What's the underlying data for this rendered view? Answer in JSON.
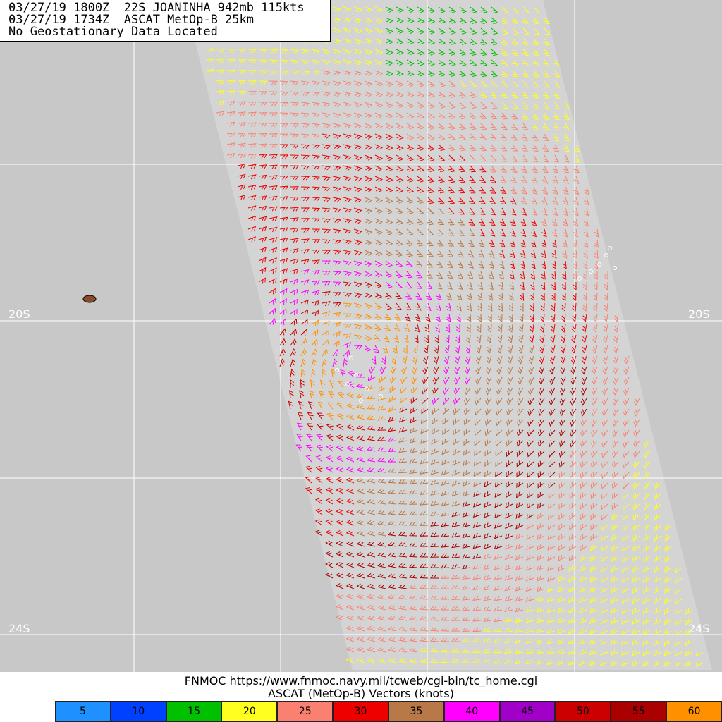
{
  "header": {
    "line1": "03/27/19 1800Z  22S JOANINHA 942mb 115kts",
    "line2": "03/27/19 1734Z  ASCAT MetOp-B 25km",
    "line3": "No Geostationary Data Located"
  },
  "grid": {
    "lat_labels": [
      {
        "text": "20S",
        "side": "left"
      },
      {
        "text": "20S",
        "side": "right"
      },
      {
        "text": "24S",
        "side": "left"
      },
      {
        "text": "24S",
        "side": "right"
      }
    ]
  },
  "footer": {
    "source_line": "FNMOC https://www.fnmoc.navy.mil/tcweb/cgi-bin/tc_home.cgi",
    "product_line": "ASCAT (MetOp-B) Vectors (knots)"
  },
  "legend": [
    {
      "label": "5",
      "color": "#1e90ff"
    },
    {
      "label": "10",
      "color": "#0040ff"
    },
    {
      "label": "15",
      "color": "#00c000"
    },
    {
      "label": "20",
      "color": "#ffff20"
    },
    {
      "label": "25",
      "color": "#fa8072"
    },
    {
      "label": "30",
      "color": "#ee0000"
    },
    {
      "label": "35",
      "color": "#b87848"
    },
    {
      "label": "40",
      "color": "#ff00ff"
    },
    {
      "label": "45",
      "color": "#a000c8"
    },
    {
      "label": "50",
      "color": "#cc0000"
    },
    {
      "label": "55",
      "color": "#aa0000"
    },
    {
      "label": "60",
      "color": "#ff9000"
    }
  ],
  "storm": {
    "name": "22S JOANINHA",
    "pressure": "942mb",
    "intensity": "115kts"
  }
}
